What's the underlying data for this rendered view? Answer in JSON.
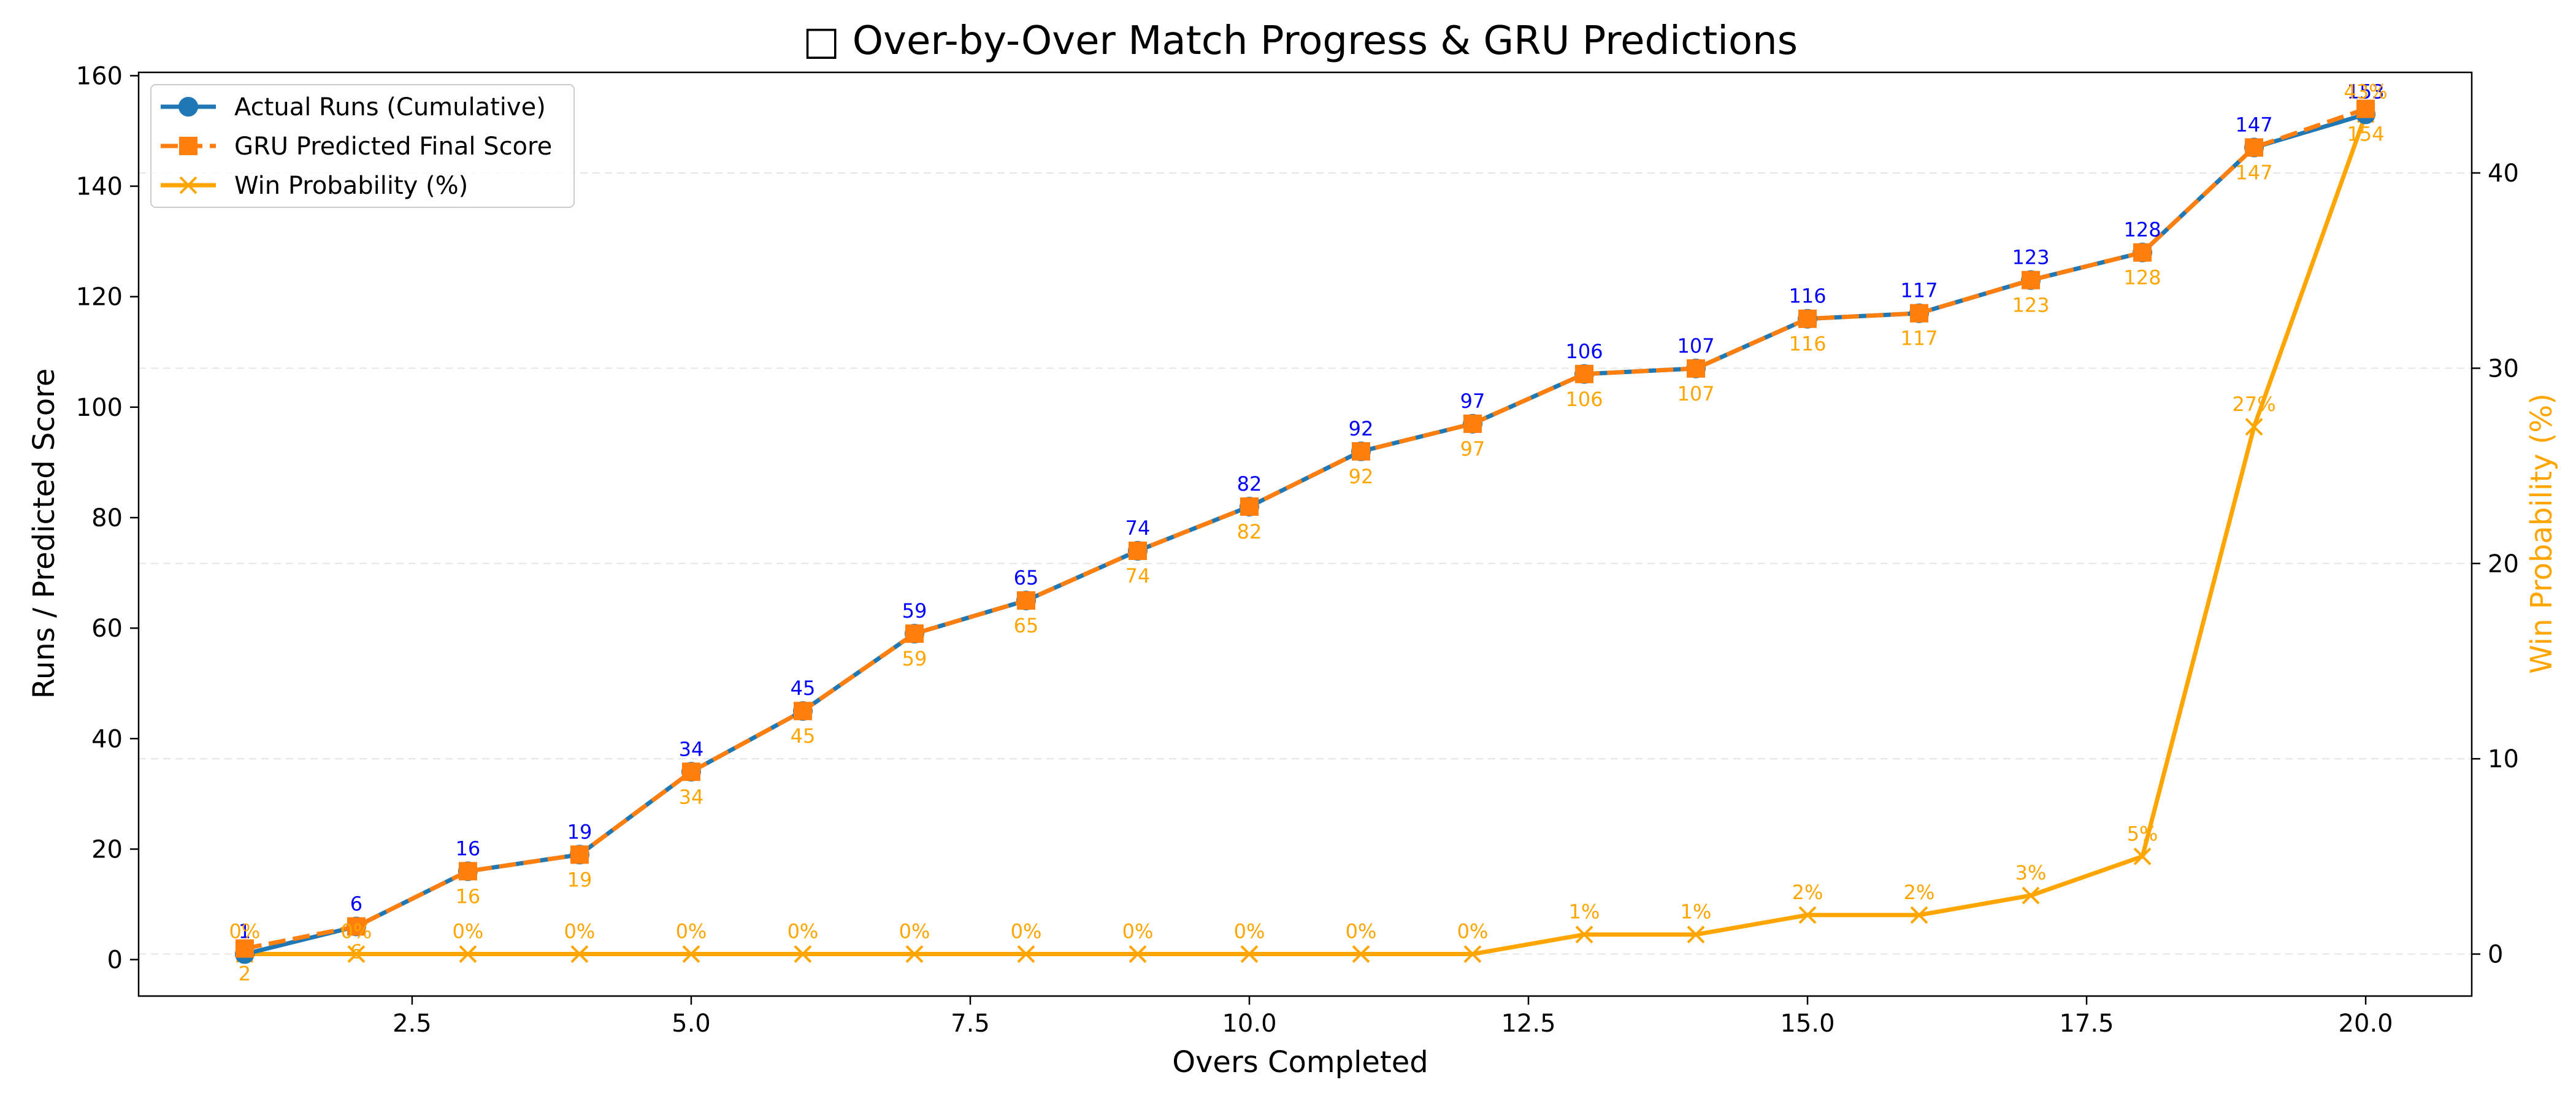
{
  "chart_data": {
    "type": "line",
    "title": "□ Over-by-Over Match Progress & GRU Predictions",
    "xlabel": "Overs Completed",
    "ylabel": "Runs / Predicted Score",
    "y2label": "Win Probability (%)",
    "x": [
      1,
      2,
      3,
      4,
      5,
      6,
      7,
      8,
      9,
      10,
      11,
      12,
      13,
      14,
      15,
      16,
      17,
      18,
      19,
      20
    ],
    "xlim": [
      0.05,
      20.95
    ],
    "ylim": [
      -6.6,
      160.6
    ],
    "y2lim": [
      -2.15,
      45.15
    ],
    "xticks": [
      "2.5",
      "5.0",
      "7.5",
      "10.0",
      "12.5",
      "15.0",
      "17.5",
      "20.0"
    ],
    "xtick_values": [
      2.5,
      5,
      7.5,
      10,
      12.5,
      15,
      17.5,
      20
    ],
    "yticks": [
      "0",
      "20",
      "40",
      "60",
      "80",
      "100",
      "120",
      "140",
      "160"
    ],
    "ytick_values": [
      0,
      20,
      40,
      60,
      80,
      100,
      120,
      140,
      160
    ],
    "y2ticks": [
      "0",
      "10",
      "20",
      "30",
      "40"
    ],
    "y2tick_values": [
      0,
      10,
      20,
      30,
      40
    ],
    "grid": "horizontal dashed (right axis)",
    "legend_position": "top-left",
    "series": [
      {
        "name": "Actual Runs (Cumulative)",
        "axis": "left",
        "color": "#1f77b4",
        "marker": "circle",
        "style": "solid",
        "values": [
          1,
          6,
          16,
          19,
          34,
          45,
          59,
          65,
          74,
          82,
          92,
          97,
          106,
          107,
          116,
          117,
          123,
          128,
          147,
          153
        ],
        "labels": [
          "1",
          "6",
          "16",
          "19",
          "34",
          "45",
          "59",
          "65",
          "74",
          "82",
          "92",
          "97",
          "106",
          "107",
          "116",
          "117",
          "123",
          "128",
          "147",
          "153"
        ]
      },
      {
        "name": "GRU Predicted Final Score",
        "axis": "left",
        "color": "#ff7f0e",
        "marker": "square",
        "style": "dashed",
        "values": [
          2,
          6,
          16,
          19,
          34,
          45,
          59,
          65,
          74,
          82,
          92,
          97,
          106,
          107,
          116,
          117,
          123,
          128,
          147,
          154
        ],
        "labels": [
          "2",
          "6",
          "16",
          "19",
          "34",
          "45",
          "59",
          "65",
          "74",
          "82",
          "92",
          "97",
          "106",
          "107",
          "116",
          "117",
          "123",
          "128",
          "147",
          "154"
        ]
      },
      {
        "name": "Win Probability (%)",
        "axis": "right",
        "color": "#ffa500",
        "marker": "x",
        "style": "solid",
        "values": [
          0,
          0,
          0,
          0,
          0,
          0,
          0,
          0,
          0,
          0,
          0,
          0,
          1,
          1,
          2,
          2,
          3,
          5,
          27,
          43
        ],
        "labels": [
          "0%",
          "0%",
          "0%",
          "0%",
          "0%",
          "0%",
          "0%",
          "0%",
          "0%",
          "0%",
          "0%",
          "0%",
          "1%",
          "1%",
          "2%",
          "2%",
          "3%",
          "5%",
          "27%",
          "43%"
        ]
      }
    ]
  }
}
